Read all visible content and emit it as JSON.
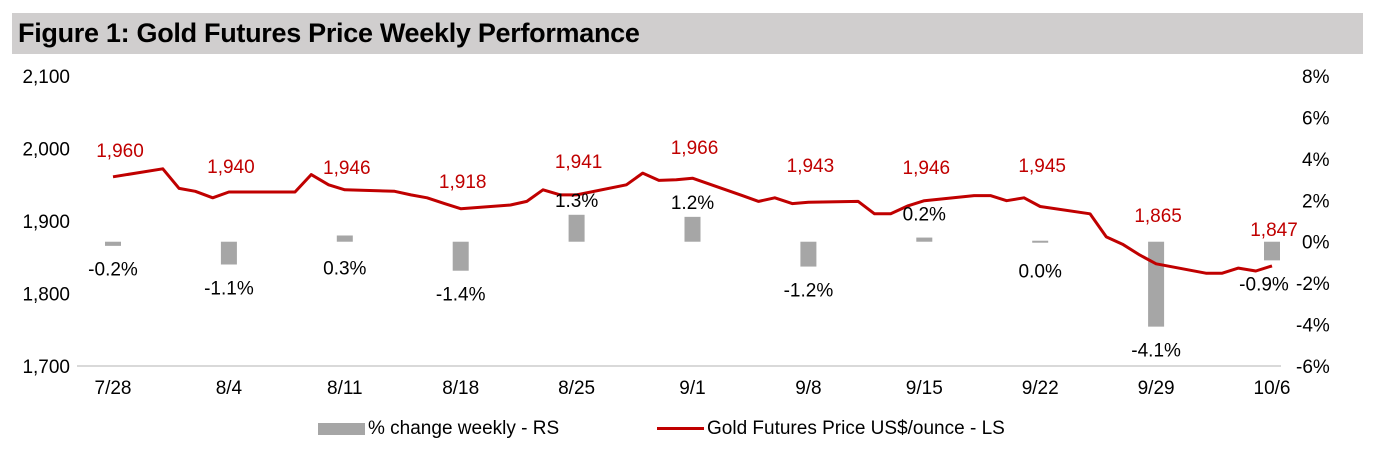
{
  "title": "Figure 1: Gold Futures Price Weekly Performance",
  "colors": {
    "bar": "#a6a6a6",
    "line": "#c00000",
    "title_bg": "#d0cece",
    "axis": "#d9d9d9"
  },
  "chart_data": {
    "type": "bar+line",
    "title": "Figure 1: Gold Futures Price Weekly Performance",
    "categories": [
      "7/28",
      "8/4",
      "8/11",
      "8/18",
      "8/25",
      "9/1",
      "9/8",
      "9/15",
      "9/22",
      "9/29",
      "10/6"
    ],
    "left_axis": {
      "ylim": [
        1700,
        2100
      ],
      "ticks": [
        "1,700",
        "1,800",
        "1,900",
        "2,000",
        "2,100"
      ],
      "tick_values": [
        1700,
        1800,
        1900,
        2000,
        2100
      ]
    },
    "right_axis": {
      "ylim": [
        -6,
        8
      ],
      "ticks": [
        "-6%",
        "-4%",
        "-2%",
        "0%",
        "2%",
        "4%",
        "6%",
        "8%"
      ],
      "tick_values": [
        -6,
        -4,
        -2,
        0,
        2,
        4,
        6,
        8
      ]
    },
    "series": [
      {
        "name": "% change weekly - RS",
        "type": "bar",
        "axis": "right",
        "values": [
          -0.2,
          -1.1,
          0.3,
          -1.4,
          1.3,
          1.2,
          -1.2,
          0.2,
          0.0,
          -4.1,
          -0.9
        ],
        "labels": [
          "-0.2%",
          "-1.1%",
          "0.3%",
          "-1.4%",
          "1.3%",
          "1.2%",
          "-1.2%",
          "0.2%",
          "0.0%",
          "-4.1%",
          "-0.9%"
        ]
      },
      {
        "name": "Gold Futures Price US$/ounce - LS",
        "type": "line",
        "axis": "left",
        "weekly_labels": [
          "1,960",
          "1,940",
          "1,946",
          "1,918",
          "1,941",
          "1,966",
          "1,943",
          "1,946",
          "1,945",
          "1,865",
          "1,847"
        ],
        "x": [
          0,
          0.43,
          0.57,
          0.71,
          0.86,
          1,
          1.43,
          1.57,
          1.71,
          1.86,
          2,
          2.43,
          2.57,
          2.71,
          2.86,
          3,
          3.43,
          3.57,
          3.71,
          3.86,
          4,
          4.43,
          4.57,
          4.71,
          4.86,
          5,
          5.43,
          5.57,
          5.71,
          5.86,
          6,
          6.43,
          6.57,
          6.71,
          6.86,
          7,
          7.43,
          7.57,
          7.71,
          7.86,
          8,
          8.43,
          8.57,
          8.71,
          8.86,
          9,
          9.43,
          9.57,
          9.71,
          9.86,
          10
        ],
        "values": [
          1961,
          1972,
          1945,
          1941,
          1932,
          1940,
          1940,
          1940,
          1964,
          1950,
          1943,
          1941,
          1936,
          1932,
          1924,
          1917,
          1922,
          1927,
          1943,
          1936,
          1936,
          1950,
          1966,
          1956,
          1957,
          1959,
          1935,
          1927,
          1932,
          1924,
          1926,
          1927,
          1910,
          1910,
          1921,
          1928,
          1935,
          1935,
          1928,
          1932,
          1920,
          1910,
          1878,
          1868,
          1853,
          1841,
          1828,
          1828,
          1835,
          1831,
          1838
        ]
      }
    ],
    "legend": [
      "% change weekly - RS",
      "Gold Futures Price US$/ounce - LS"
    ],
    "legend_position": "bottom",
    "grid": false
  }
}
